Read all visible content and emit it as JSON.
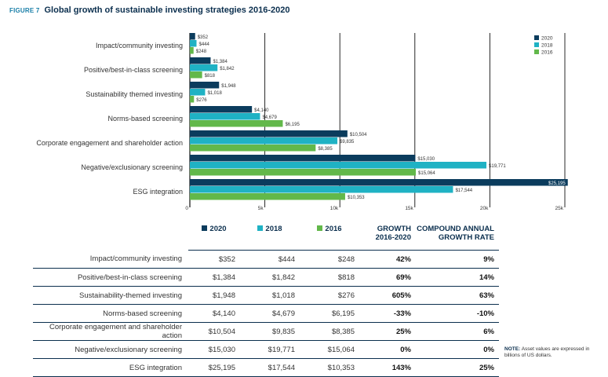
{
  "figure_label": "FIGURE 7",
  "title": "Global growth of sustainable investing strategies 2016-2020",
  "note_label": "NOTE:",
  "note_text": "Asset values are expressed in billions of US dollars.",
  "colors": {
    "s2020": "#0b3c5d",
    "s2018": "#1fb2c4",
    "s2016": "#62b84a",
    "axis": "#111111",
    "text": "#333333"
  },
  "chart_data": {
    "type": "bar",
    "orientation": "horizontal",
    "title": "Global growth of sustainable investing strategies 2016-2020",
    "categories": [
      "Impact/community investing",
      "Positive/best-in-class screening",
      "Sustainability themed investing",
      "Norms-based screening",
      "Corporate engagement and shareholder action",
      "Negative/exclusionary screening",
      "ESG integration"
    ],
    "series": [
      {
        "name": "2020",
        "values": [
          352,
          1384,
          1948,
          4140,
          10504,
          15030,
          25195
        ],
        "labels": [
          "$352",
          "$1,384",
          "$1,948",
          "$4,140",
          "$10,504",
          "$15,030",
          "$25,195"
        ]
      },
      {
        "name": "2018",
        "values": [
          444,
          1842,
          1018,
          4679,
          9835,
          19771,
          17544
        ],
        "labels": [
          "$444",
          "$1,842",
          "$1,018",
          "$4,679",
          "$9,835",
          "$19,771",
          "$17,544"
        ]
      },
      {
        "name": "2016",
        "values": [
          248,
          818,
          276,
          6195,
          8385,
          15064,
          10353
        ],
        "labels": [
          "$248",
          "$818",
          "$276",
          "$6,195",
          "$8,385",
          "$15,064",
          "$10,353"
        ]
      }
    ],
    "xlim": [
      0,
      25000
    ],
    "xticks": [
      0,
      5000,
      10000,
      15000,
      20000,
      25000
    ],
    "xtick_labels": [
      "0",
      "5k",
      "10k",
      "15k",
      "20k",
      "25k"
    ],
    "legend": [
      "2020",
      "2018",
      "2016"
    ],
    "legend_position": "top-right",
    "grid": true
  },
  "table": {
    "headers": [
      "2020",
      "2018",
      "2016",
      "GROWTH 2016-2020",
      "COMPOUND ANNUAL GROWTH RATE"
    ],
    "rows": [
      {
        "name": "Impact/community investing",
        "v2020": "$352",
        "v2018": "$444",
        "v2016": "$248",
        "growth": "42%",
        "cagr": "9%"
      },
      {
        "name": "Positive/best-in-class screening",
        "v2020": "$1,384",
        "v2018": "$1,842",
        "v2016": "$818",
        "growth": "69%",
        "cagr": "14%"
      },
      {
        "name": "Sustainability-themed investing",
        "v2020": "$1,948",
        "v2018": "$1,018",
        "v2016": "$276",
        "growth": "605%",
        "cagr": "63%"
      },
      {
        "name": "Norms-based screening",
        "v2020": "$4,140",
        "v2018": "$4,679",
        "v2016": "$6,195",
        "growth": "-33%",
        "cagr": "-10%"
      },
      {
        "name": "Corporate engagement and shareholder action",
        "v2020": "$10,504",
        "v2018": "$9,835",
        "v2016": "$8,385",
        "growth": "25%",
        "cagr": "6%"
      },
      {
        "name": "Negative/exclusionary screening",
        "v2020": "$15,030",
        "v2018": "$19,771",
        "v2016": "$15,064",
        "growth": "0%",
        "cagr": "0%"
      },
      {
        "name": "ESG integration",
        "v2020": "$25,195",
        "v2018": "$17,544",
        "v2016": "$10,353",
        "growth": "143%",
        "cagr": "25%"
      }
    ]
  }
}
